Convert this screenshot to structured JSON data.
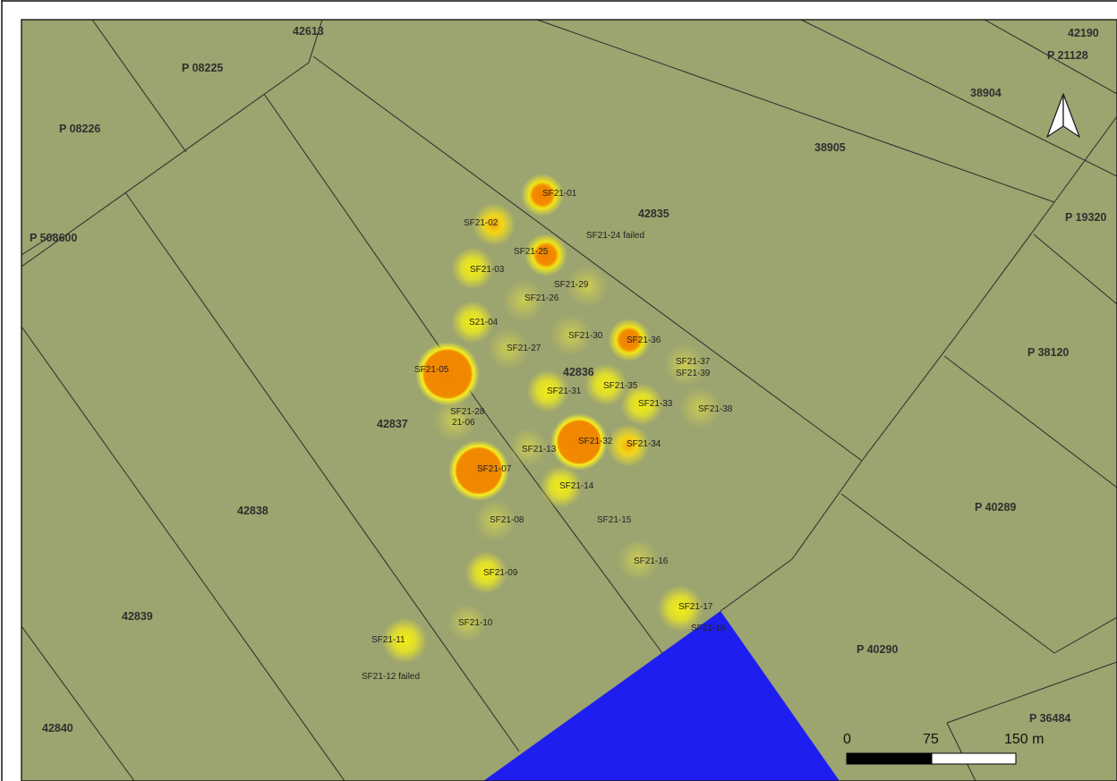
{
  "map": {
    "background_color": "#9ca46f",
    "line_color": "#2b2b2b",
    "water_color": "#1e1ef0",
    "heat_colors": {
      "low": "#f6f20c",
      "mid": "#f8b10a",
      "high": "#f18a00"
    }
  },
  "parcels": [
    {
      "id": "p-42613",
      "label": "42613"
    },
    {
      "id": "p-42190",
      "label": "42190"
    },
    {
      "id": "p-21128",
      "label": "P 21128"
    },
    {
      "id": "p-08225",
      "label": "P 08225"
    },
    {
      "id": "p-38904",
      "label": "38904"
    },
    {
      "id": "p-08226",
      "label": "P 08226"
    },
    {
      "id": "p-38905",
      "label": "38905"
    },
    {
      "id": "p-42835",
      "label": "42835"
    },
    {
      "id": "p-19320",
      "label": "P 19320"
    },
    {
      "id": "p-508600",
      "label": "P 508600"
    },
    {
      "id": "p-38120",
      "label": "P 38120"
    },
    {
      "id": "p-42836",
      "label": "42836"
    },
    {
      "id": "p-42837",
      "label": "42837"
    },
    {
      "id": "p-40289",
      "label": "P 40289"
    },
    {
      "id": "p-42838",
      "label": "42838"
    },
    {
      "id": "p-42839",
      "label": "42839"
    },
    {
      "id": "p-40290",
      "label": "P 40290"
    },
    {
      "id": "p-36484",
      "label": "P 36484"
    },
    {
      "id": "p-42840",
      "label": "42840"
    }
  ],
  "samples": [
    {
      "id": "sf21-01",
      "label": "SF21-01",
      "intensity": "high"
    },
    {
      "id": "sf21-02",
      "label": "SF21-02",
      "intensity": "mid"
    },
    {
      "id": "sf21-24",
      "label": "SF21-24 failed",
      "intensity": "none"
    },
    {
      "id": "sf21-25",
      "label": "SF21-25",
      "intensity": "high"
    },
    {
      "id": "sf21-03",
      "label": "SF21-03",
      "intensity": "low"
    },
    {
      "id": "sf21-29",
      "label": "SF21-29",
      "intensity": "low"
    },
    {
      "id": "sf21-26",
      "label": "SF21-26",
      "intensity": "low"
    },
    {
      "id": "s21-04",
      "label": "S21-04",
      "intensity": "low"
    },
    {
      "id": "sf21-30",
      "label": "SF21-30",
      "intensity": "low"
    },
    {
      "id": "sf21-36",
      "label": "SF21-36",
      "intensity": "high"
    },
    {
      "id": "sf21-27",
      "label": "SF21-27",
      "intensity": "low"
    },
    {
      "id": "sf21-37",
      "label": "SF21-37",
      "intensity": "low"
    },
    {
      "id": "sf21-39",
      "label": "SF21-39",
      "intensity": "none"
    },
    {
      "id": "sf21-05",
      "label": "SF21-05",
      "intensity": "max"
    },
    {
      "id": "sf21-35",
      "label": "SF21-35",
      "intensity": "low"
    },
    {
      "id": "sf21-31",
      "label": "SF21-31",
      "intensity": "low"
    },
    {
      "id": "sf21-33",
      "label": "SF21-33",
      "intensity": "low"
    },
    {
      "id": "sf21-38",
      "label": "SF21-38",
      "intensity": "low"
    },
    {
      "id": "sf21-28",
      "label": "SF21-28",
      "intensity": "low"
    },
    {
      "id": "sf21-06",
      "label": "21-06",
      "intensity": "none"
    },
    {
      "id": "sf21-32",
      "label": "SF21-32",
      "intensity": "max"
    },
    {
      "id": "sf21-34",
      "label": "SF21-34",
      "intensity": "mid"
    },
    {
      "id": "sf21-13",
      "label": "SF21-13",
      "intensity": "low"
    },
    {
      "id": "sf21-07",
      "label": "SF21-07",
      "intensity": "max"
    },
    {
      "id": "sf21-14",
      "label": "SF21-14",
      "intensity": "low"
    },
    {
      "id": "sf21-08",
      "label": "SF21-08",
      "intensity": "low"
    },
    {
      "id": "sf21-15",
      "label": "SF21-15",
      "intensity": "none"
    },
    {
      "id": "sf21-16",
      "label": "SF21-16",
      "intensity": "low"
    },
    {
      "id": "sf21-09",
      "label": "SF21-09",
      "intensity": "low"
    },
    {
      "id": "sf21-17",
      "label": "SF21-17",
      "intensity": "low"
    },
    {
      "id": "sf21-18",
      "label": "SF21-18",
      "intensity": "none"
    },
    {
      "id": "sf21-10",
      "label": "SF21-10",
      "intensity": "low"
    },
    {
      "id": "sf21-11",
      "label": "SF21-11",
      "intensity": "low"
    },
    {
      "id": "sf21-12",
      "label": "SF21-12 failed",
      "intensity": "none"
    }
  ],
  "scale_bar": {
    "tick_0": "0",
    "tick_mid": "75",
    "tick_end": "150 m"
  },
  "north_arrow": {
    "icon": "north-arrow-icon"
  }
}
